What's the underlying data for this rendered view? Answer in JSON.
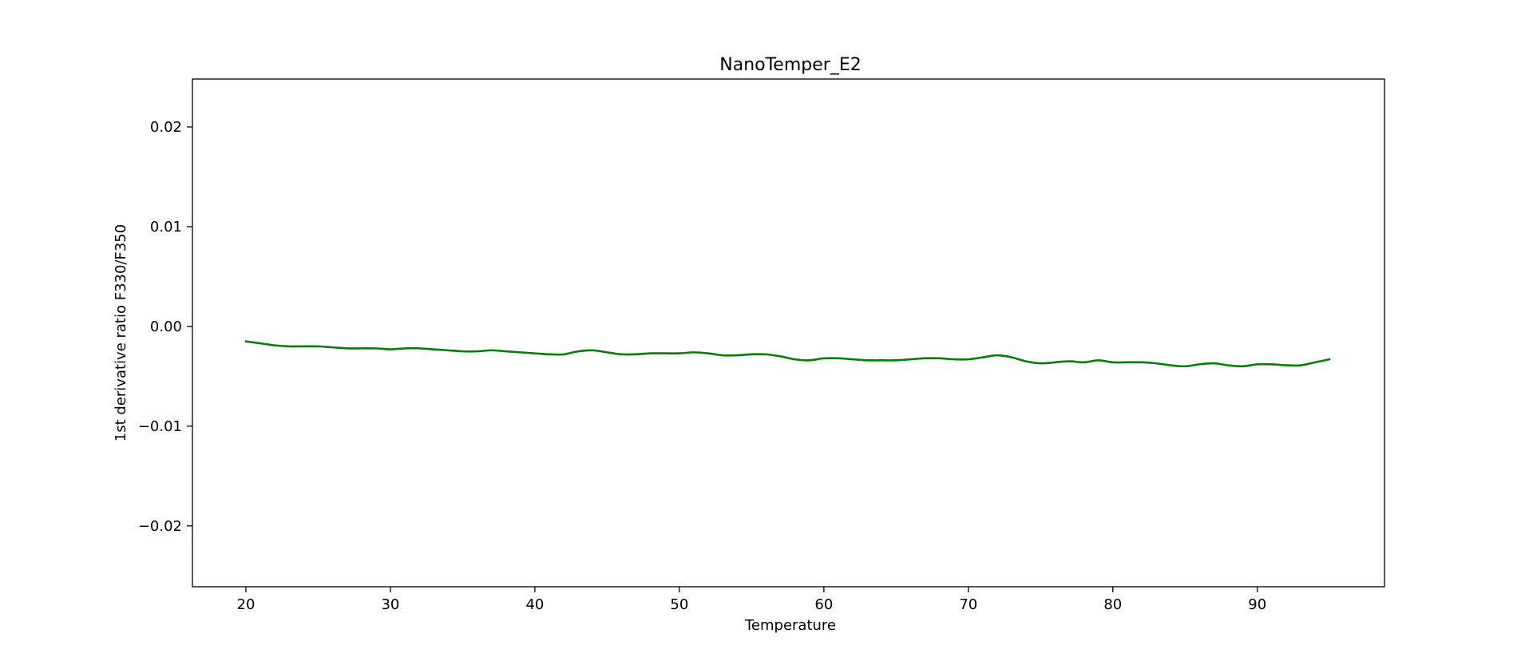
{
  "chart_data": {
    "type": "line",
    "title": "NanoTemper_E2",
    "xlabel": "Temperature",
    "ylabel": "1st derivative ratio F330/F350",
    "xlim": [
      16.3,
      98.8
    ],
    "ylim": [
      -0.0261,
      0.0248
    ],
    "x_ticks": [
      20,
      30,
      40,
      50,
      60,
      70,
      80,
      90
    ],
    "x_tick_labels": [
      "20",
      "30",
      "40",
      "50",
      "60",
      "70",
      "80",
      "90"
    ],
    "y_ticks": [
      0.02,
      0.01,
      0.0,
      -0.01,
      -0.02
    ],
    "y_tick_labels": [
      "0.02",
      "0.01",
      "0.00",
      "−0.01",
      "−0.02"
    ],
    "grid": false,
    "legend": "none",
    "series": [
      {
        "color": "#007f00",
        "x": [
          20,
          21,
          22,
          23,
          24,
          25,
          26,
          27,
          28,
          29,
          30,
          31,
          32,
          33,
          34,
          35,
          36,
          37,
          38,
          39,
          40,
          41,
          42,
          43,
          44,
          45,
          46,
          47,
          48,
          49,
          50,
          51,
          52,
          53,
          54,
          55,
          56,
          57,
          58,
          59,
          60,
          61,
          62,
          63,
          64,
          65,
          66,
          67,
          68,
          69,
          70,
          71,
          72,
          73,
          74,
          75,
          76,
          77,
          78,
          79,
          80,
          81,
          82,
          83,
          84,
          85,
          86,
          87,
          88,
          89,
          90,
          91,
          92,
          93,
          94,
          95
        ],
        "y": [
          -0.0015,
          -0.0017,
          -0.0019,
          -0.002,
          -0.002,
          -0.002,
          -0.0021,
          -0.0022,
          -0.0022,
          -0.0022,
          -0.0023,
          -0.0022,
          -0.0022,
          -0.0023,
          -0.0024,
          -0.0025,
          -0.0025,
          -0.0024,
          -0.0025,
          -0.0026,
          -0.0027,
          -0.0028,
          -0.0028,
          -0.0025,
          -0.0024,
          -0.0026,
          -0.0028,
          -0.0028,
          -0.0027,
          -0.0027,
          -0.0027,
          -0.0026,
          -0.0027,
          -0.0029,
          -0.0029,
          -0.0028,
          -0.0028,
          -0.003,
          -0.0033,
          -0.0034,
          -0.0032,
          -0.0032,
          -0.0033,
          -0.0034,
          -0.0034,
          -0.0034,
          -0.0033,
          -0.0032,
          -0.0032,
          -0.0033,
          -0.0033,
          -0.0031,
          -0.0029,
          -0.0031,
          -0.0035,
          -0.0037,
          -0.0036,
          -0.0035,
          -0.0036,
          -0.0034,
          -0.0036,
          -0.0036,
          -0.0036,
          -0.0037,
          -0.0039,
          -0.004,
          -0.0038,
          -0.0037,
          -0.0039,
          -0.004,
          -0.0038,
          -0.0038,
          -0.0039,
          -0.0039,
          -0.0036,
          -0.0033
        ]
      }
    ]
  }
}
